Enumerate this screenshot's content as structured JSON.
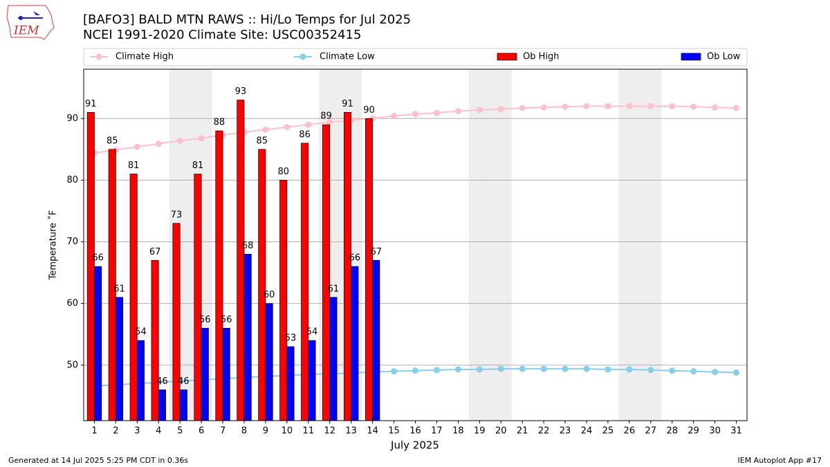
{
  "chart_data": {
    "type": "bar",
    "title": "[BAFO3] BALD MTN RAWS :: Hi/Lo Temps for Jul 2025",
    "subtitle": "NCEI 1991-2020 Climate Site: USC00352415",
    "xlabel": "July 2025",
    "ylabel": "Temperature ˚F",
    "logo_text": "IEM",
    "footer_left": "Generated at 14 Jul 2025 5:25 PM CDT in 0.36s",
    "footer_right": "IEM Autoplot App #17",
    "x": [
      1,
      2,
      3,
      4,
      5,
      6,
      7,
      8,
      9,
      10,
      11,
      12,
      13,
      14,
      15,
      16,
      17,
      18,
      19,
      20,
      21,
      22,
      23,
      24,
      25,
      26,
      27,
      28,
      29,
      30,
      31
    ],
    "xlim": [
      0.5,
      31.5
    ],
    "xticks": [
      1,
      2,
      3,
      4,
      5,
      6,
      7,
      8,
      9,
      10,
      11,
      12,
      13,
      14,
      15,
      16,
      17,
      18,
      19,
      20,
      21,
      22,
      23,
      24,
      25,
      26,
      27,
      28,
      29,
      30,
      31
    ],
    "ylim": [
      41,
      98
    ],
    "yticks": [
      50,
      60,
      70,
      80,
      90
    ],
    "grid": true,
    "weekend_days": [
      5,
      6,
      12,
      13,
      19,
      20,
      26,
      27
    ],
    "weekend_color": "#eeeeee",
    "series": [
      {
        "name": "Climate High",
        "kind": "line",
        "color": "#ffc0cb",
        "values": [
          84.4,
          84.9,
          85.4,
          85.9,
          86.4,
          86.8,
          87.3,
          87.8,
          88.2,
          88.6,
          89.0,
          89.4,
          89.7,
          90.0,
          90.4,
          90.7,
          90.9,
          91.2,
          91.4,
          91.5,
          91.7,
          91.8,
          91.9,
          92.0,
          92.0,
          92.0,
          92.0,
          92.0,
          91.9,
          91.8,
          91.7
        ]
      },
      {
        "name": "Climate Low",
        "kind": "line",
        "color": "#87ceeb",
        "values": [
          46.6,
          46.8,
          47.0,
          47.2,
          47.4,
          47.6,
          47.8,
          48.0,
          48.2,
          48.3,
          48.5,
          48.6,
          48.7,
          48.9,
          49.0,
          49.1,
          49.2,
          49.3,
          49.3,
          49.4,
          49.4,
          49.4,
          49.4,
          49.4,
          49.3,
          49.3,
          49.2,
          49.1,
          49.0,
          48.9,
          48.8
        ]
      },
      {
        "name": "Ob High",
        "kind": "bar",
        "color": "#ff0000",
        "offset": -1,
        "values": [
          91,
          85,
          81,
          67,
          73,
          81,
          88,
          93,
          85,
          80,
          86,
          89,
          91,
          90,
          null,
          null,
          null,
          null,
          null,
          null,
          null,
          null,
          null,
          null,
          null,
          null,
          null,
          null,
          null,
          null,
          null
        ]
      },
      {
        "name": "Ob Low",
        "kind": "bar",
        "color": "#0000ff",
        "offset": 1,
        "values": [
          66,
          61,
          54,
          46,
          46,
          56,
          56,
          68,
          60,
          53,
          54,
          61,
          66,
          67,
          null,
          null,
          null,
          null,
          null,
          null,
          null,
          null,
          null,
          null,
          null,
          null,
          null,
          null,
          null,
          null,
          null
        ]
      }
    ]
  }
}
